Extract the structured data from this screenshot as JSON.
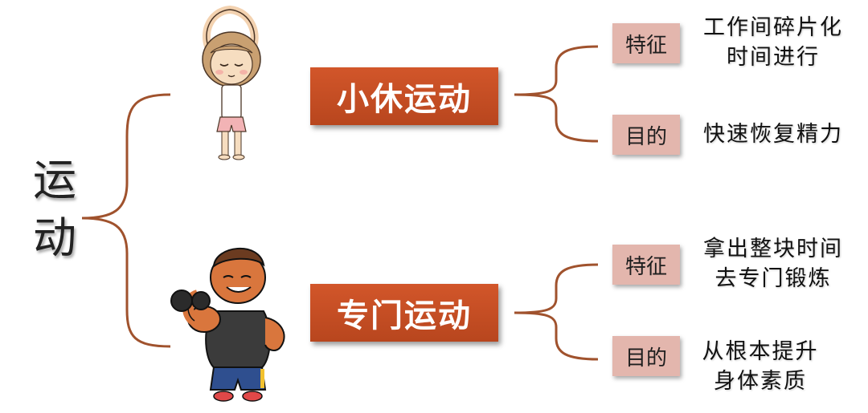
{
  "root": {
    "char1": "运",
    "char2": "动"
  },
  "branches": [
    {
      "title": "小休运动",
      "feature_tag": "特征",
      "feature_line1": "工作间碎片化",
      "feature_line2": "时间进行",
      "purpose_tag": "目的",
      "purpose_line1": "快速恢复精力"
    },
    {
      "title": "专门运动",
      "feature_tag": "特征",
      "feature_line1": "拿出整块时间",
      "feature_line2": "去专门锻炼",
      "purpose_tag": "目的",
      "purpose_line1": "从根本提升",
      "purpose_line2": "身体素质"
    }
  ],
  "colors": {
    "bracket": "#a0522d",
    "main_box": "#c34e24",
    "tag_box": "#e3b6ad"
  },
  "icons": [
    "girl-stretching-illustration",
    "muscle-man-dumbbell-illustration"
  ]
}
